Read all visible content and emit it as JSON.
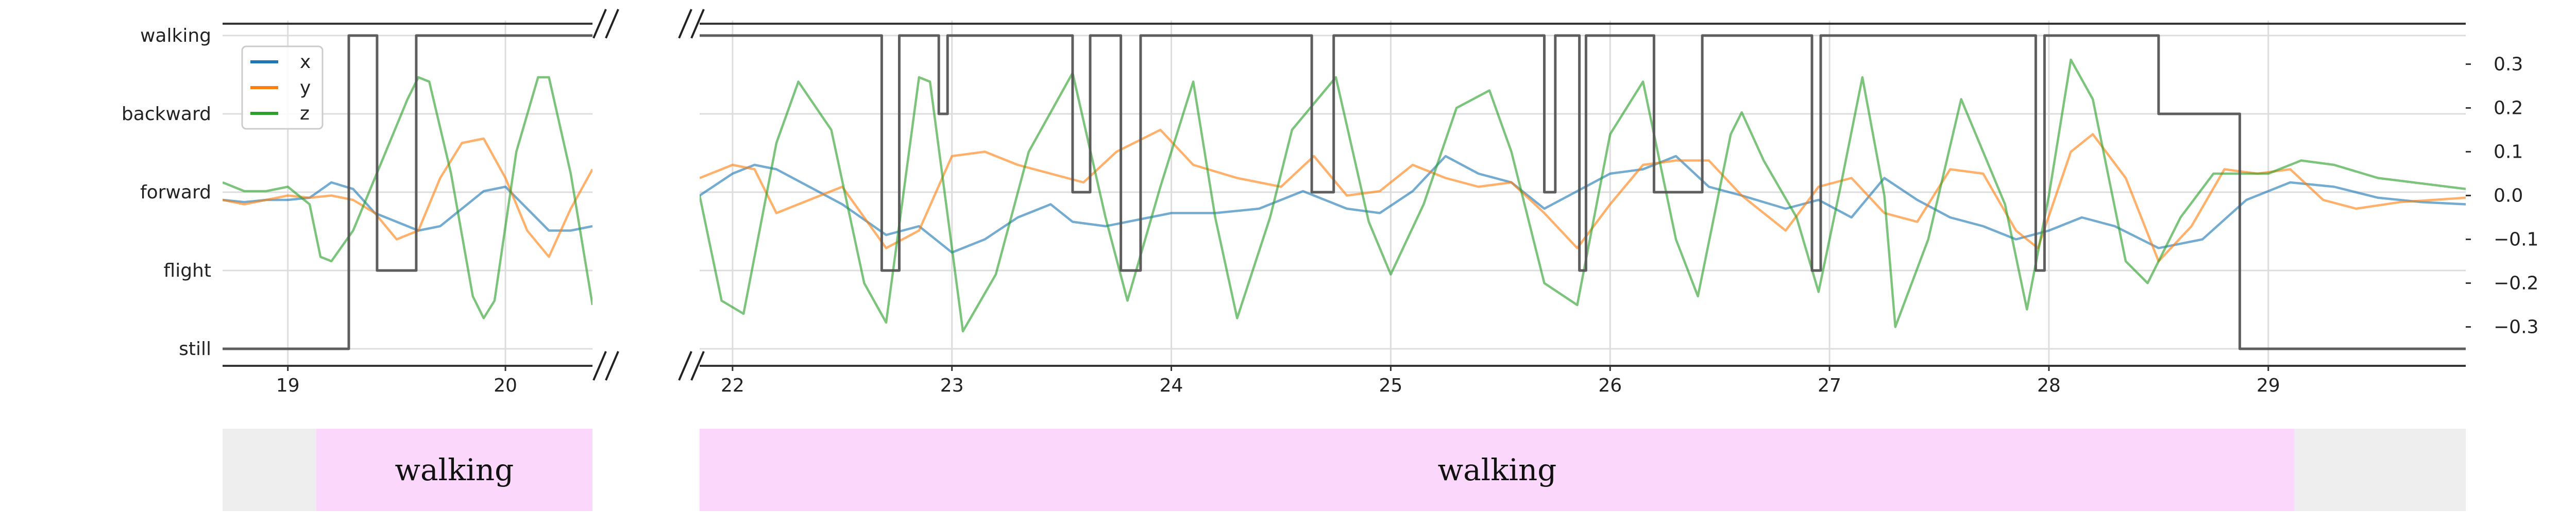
{
  "chart_data": {
    "type": "line",
    "title": "",
    "xlabel": "",
    "ylabel": "",
    "axes": [
      {
        "name": "left-panel",
        "xlim": [
          18.7,
          20.4
        ],
        "x_ticks": [
          "19",
          "20"
        ]
      },
      {
        "name": "right-panel",
        "xlim": [
          21.85,
          29.9
        ],
        "x_ticks": [
          "22",
          "23",
          "24",
          "25",
          "26",
          "27",
          "28",
          "29"
        ]
      }
    ],
    "y_left": {
      "categories": [
        "walking",
        "backward",
        "forward",
        "flight",
        "still"
      ]
    },
    "y_right": {
      "ylim": [
        -0.33,
        0.33
      ],
      "ticks": [
        "0.3",
        "0.2",
        "0.1",
        "0.0",
        "−0.1",
        "−0.2",
        "−0.3"
      ],
      "tick_values": [
        0.3,
        0.2,
        0.1,
        0.0,
        -0.1,
        -0.2,
        -0.3
      ]
    },
    "legend": {
      "placement": "upper-left",
      "entries": [
        "x",
        "y",
        "z"
      ]
    },
    "colors": {
      "x": "#1f77b4",
      "y": "#ff7f0e",
      "z": "#2ca02c",
      "state": "#555555",
      "segment_label": "#fbd8fb",
      "segment_none": "#eeeeee"
    },
    "state_series": {
      "name": "state",
      "points": [
        [
          18.7,
          "still"
        ],
        [
          19.28,
          "still"
        ],
        [
          19.28,
          "walking"
        ],
        [
          19.41,
          "walking"
        ],
        [
          19.41,
          "flight"
        ],
        [
          19.59,
          "flight"
        ],
        [
          19.59,
          "walking"
        ],
        [
          20.4,
          "walking"
        ],
        [
          21.85,
          "walking"
        ],
        [
          22.68,
          "walking"
        ],
        [
          22.68,
          "flight"
        ],
        [
          22.76,
          "flight"
        ],
        [
          22.76,
          "walking"
        ],
        [
          22.94,
          "walking"
        ],
        [
          22.94,
          "backward"
        ],
        [
          22.98,
          "backward"
        ],
        [
          22.98,
          "walking"
        ],
        [
          23.55,
          "walking"
        ],
        [
          23.55,
          "forward"
        ],
        [
          23.63,
          "forward"
        ],
        [
          23.63,
          "walking"
        ],
        [
          23.77,
          "walking"
        ],
        [
          23.77,
          "flight"
        ],
        [
          23.86,
          "flight"
        ],
        [
          23.86,
          "walking"
        ],
        [
          24.64,
          "walking"
        ],
        [
          24.64,
          "forward"
        ],
        [
          24.74,
          "forward"
        ],
        [
          24.74,
          "walking"
        ],
        [
          25.7,
          "walking"
        ],
        [
          25.7,
          "forward"
        ],
        [
          25.75,
          "forward"
        ],
        [
          25.75,
          "walking"
        ],
        [
          25.86,
          "walking"
        ],
        [
          25.86,
          "flight"
        ],
        [
          25.89,
          "flight"
        ],
        [
          25.89,
          "walking"
        ],
        [
          26.2,
          "walking"
        ],
        [
          26.2,
          "forward"
        ],
        [
          26.42,
          "forward"
        ],
        [
          26.42,
          "walking"
        ],
        [
          26.92,
          "walking"
        ],
        [
          26.92,
          "flight"
        ],
        [
          26.96,
          "flight"
        ],
        [
          26.96,
          "walking"
        ],
        [
          27.94,
          "walking"
        ],
        [
          27.94,
          "flight"
        ],
        [
          27.98,
          "flight"
        ],
        [
          27.98,
          "walking"
        ],
        [
          28.5,
          "walking"
        ],
        [
          28.5,
          "backward"
        ],
        [
          28.87,
          "backward"
        ],
        [
          28.87,
          "still"
        ],
        [
          29.9,
          "still"
        ]
      ]
    },
    "series": [
      {
        "name": "x",
        "points": [
          [
            18.7,
            -0.01
          ],
          [
            18.8,
            -0.015
          ],
          [
            18.9,
            -0.01
          ],
          [
            19.0,
            -0.01
          ],
          [
            19.1,
            -0.005
          ],
          [
            19.2,
            0.03
          ],
          [
            19.3,
            0.015
          ],
          [
            19.4,
            -0.04
          ],
          [
            19.5,
            -0.06
          ],
          [
            19.6,
            -0.08
          ],
          [
            19.7,
            -0.07
          ],
          [
            19.8,
            -0.03
          ],
          [
            19.9,
            0.01
          ],
          [
            20.0,
            0.02
          ],
          [
            20.1,
            -0.03
          ],
          [
            20.2,
            -0.08
          ],
          [
            20.3,
            -0.08
          ],
          [
            20.4,
            -0.07
          ],
          [
            21.85,
            0.0
          ],
          [
            22.0,
            0.05
          ],
          [
            22.1,
            0.07
          ],
          [
            22.2,
            0.06
          ],
          [
            22.35,
            0.02
          ],
          [
            22.5,
            -0.02
          ],
          [
            22.7,
            -0.09
          ],
          [
            22.85,
            -0.07
          ],
          [
            23.0,
            -0.13
          ],
          [
            23.15,
            -0.1
          ],
          [
            23.3,
            -0.05
          ],
          [
            23.45,
            -0.02
          ],
          [
            23.55,
            -0.06
          ],
          [
            23.7,
            -0.07
          ],
          [
            23.9,
            -0.05
          ],
          [
            24.0,
            -0.04
          ],
          [
            24.2,
            -0.04
          ],
          [
            24.4,
            -0.03
          ],
          [
            24.6,
            0.01
          ],
          [
            24.8,
            -0.03
          ],
          [
            24.95,
            -0.04
          ],
          [
            25.1,
            0.01
          ],
          [
            25.25,
            0.09
          ],
          [
            25.4,
            0.05
          ],
          [
            25.55,
            0.03
          ],
          [
            25.7,
            -0.03
          ],
          [
            25.85,
            0.01
          ],
          [
            26.0,
            0.05
          ],
          [
            26.15,
            0.06
          ],
          [
            26.3,
            0.09
          ],
          [
            26.45,
            0.02
          ],
          [
            26.6,
            0.0
          ],
          [
            26.8,
            -0.03
          ],
          [
            26.95,
            -0.01
          ],
          [
            27.1,
            -0.05
          ],
          [
            27.25,
            0.04
          ],
          [
            27.4,
            -0.01
          ],
          [
            27.55,
            -0.05
          ],
          [
            27.7,
            -0.07
          ],
          [
            27.85,
            -0.1
          ],
          [
            28.0,
            -0.08
          ],
          [
            28.15,
            -0.05
          ],
          [
            28.3,
            -0.07
          ],
          [
            28.5,
            -0.12
          ],
          [
            28.7,
            -0.1
          ],
          [
            28.9,
            -0.01
          ],
          [
            29.1,
            0.03
          ],
          [
            29.3,
            0.02
          ],
          [
            29.5,
            -0.005
          ],
          [
            29.7,
            -0.015
          ],
          [
            29.9,
            -0.02
          ]
        ]
      },
      {
        "name": "y",
        "points": [
          [
            18.7,
            -0.01
          ],
          [
            18.8,
            -0.02
          ],
          [
            18.9,
            -0.01
          ],
          [
            19.0,
            0.0
          ],
          [
            19.1,
            -0.005
          ],
          [
            19.2,
            0.0
          ],
          [
            19.3,
            -0.01
          ],
          [
            19.4,
            -0.04
          ],
          [
            19.5,
            -0.1
          ],
          [
            19.6,
            -0.08
          ],
          [
            19.7,
            0.04
          ],
          [
            19.8,
            0.12
          ],
          [
            19.9,
            0.13
          ],
          [
            20.0,
            0.04
          ],
          [
            20.1,
            -0.08
          ],
          [
            20.2,
            -0.14
          ],
          [
            20.3,
            -0.03
          ],
          [
            20.4,
            0.06
          ],
          [
            21.85,
            0.04
          ],
          [
            22.0,
            0.07
          ],
          [
            22.1,
            0.06
          ],
          [
            22.2,
            -0.04
          ],
          [
            22.35,
            -0.01
          ],
          [
            22.5,
            0.02
          ],
          [
            22.7,
            -0.12
          ],
          [
            22.85,
            -0.08
          ],
          [
            23.0,
            0.09
          ],
          [
            23.15,
            0.1
          ],
          [
            23.3,
            0.07
          ],
          [
            23.45,
            0.05
          ],
          [
            23.6,
            0.03
          ],
          [
            23.75,
            0.1
          ],
          [
            23.95,
            0.15
          ],
          [
            24.1,
            0.07
          ],
          [
            24.3,
            0.04
          ],
          [
            24.5,
            0.02
          ],
          [
            24.65,
            0.09
          ],
          [
            24.8,
            0.0
          ],
          [
            24.95,
            0.01
          ],
          [
            25.1,
            0.07
          ],
          [
            25.25,
            0.04
          ],
          [
            25.4,
            0.02
          ],
          [
            25.55,
            0.03
          ],
          [
            25.7,
            -0.04
          ],
          [
            25.85,
            -0.12
          ],
          [
            26.0,
            -0.02
          ],
          [
            26.15,
            0.07
          ],
          [
            26.3,
            0.08
          ],
          [
            26.45,
            0.08
          ],
          [
            26.6,
            0.0
          ],
          [
            26.8,
            -0.08
          ],
          [
            26.95,
            0.02
          ],
          [
            27.1,
            0.04
          ],
          [
            27.25,
            -0.04
          ],
          [
            27.4,
            -0.06
          ],
          [
            27.55,
            0.06
          ],
          [
            27.7,
            0.05
          ],
          [
            27.85,
            -0.08
          ],
          [
            27.95,
            -0.12
          ],
          [
            28.1,
            0.1
          ],
          [
            28.2,
            0.14
          ],
          [
            28.35,
            0.04
          ],
          [
            28.5,
            -0.15
          ],
          [
            28.65,
            -0.07
          ],
          [
            28.8,
            0.06
          ],
          [
            28.95,
            0.05
          ],
          [
            29.1,
            0.06
          ],
          [
            29.25,
            -0.01
          ],
          [
            29.4,
            -0.03
          ],
          [
            29.6,
            -0.015
          ],
          [
            29.9,
            -0.005
          ]
        ]
      },
      {
        "name": "z",
        "points": [
          [
            18.7,
            0.03
          ],
          [
            18.8,
            0.01
          ],
          [
            18.9,
            0.01
          ],
          [
            19.0,
            0.02
          ],
          [
            19.1,
            -0.02
          ],
          [
            19.15,
            -0.14
          ],
          [
            19.2,
            -0.15
          ],
          [
            19.3,
            -0.08
          ],
          [
            19.45,
            0.1
          ],
          [
            19.55,
            0.22
          ],
          [
            19.6,
            0.27
          ],
          [
            19.65,
            0.26
          ],
          [
            19.75,
            0.05
          ],
          [
            19.85,
            -0.23
          ],
          [
            19.9,
            -0.28
          ],
          [
            19.95,
            -0.24
          ],
          [
            20.05,
            0.1
          ],
          [
            20.15,
            0.27
          ],
          [
            20.2,
            0.27
          ],
          [
            20.3,
            0.05
          ],
          [
            20.4,
            -0.25
          ],
          [
            21.85,
            0.0
          ],
          [
            21.95,
            -0.24
          ],
          [
            22.05,
            -0.27
          ],
          [
            22.2,
            0.12
          ],
          [
            22.3,
            0.26
          ],
          [
            22.45,
            0.15
          ],
          [
            22.6,
            -0.2
          ],
          [
            22.7,
            -0.29
          ],
          [
            22.85,
            0.27
          ],
          [
            22.9,
            0.26
          ],
          [
            23.05,
            -0.31
          ],
          [
            23.2,
            -0.18
          ],
          [
            23.35,
            0.1
          ],
          [
            23.55,
            0.28
          ],
          [
            23.7,
            -0.05
          ],
          [
            23.8,
            -0.24
          ],
          [
            23.95,
            0.02
          ],
          [
            24.1,
            0.26
          ],
          [
            24.2,
            -0.05
          ],
          [
            24.3,
            -0.28
          ],
          [
            24.45,
            -0.05
          ],
          [
            24.55,
            0.15
          ],
          [
            24.75,
            0.27
          ],
          [
            24.9,
            -0.06
          ],
          [
            25.0,
            -0.18
          ],
          [
            25.15,
            -0.02
          ],
          [
            25.3,
            0.2
          ],
          [
            25.45,
            0.24
          ],
          [
            25.55,
            0.1
          ],
          [
            25.7,
            -0.2
          ],
          [
            25.85,
            -0.25
          ],
          [
            26.0,
            0.14
          ],
          [
            26.15,
            0.26
          ],
          [
            26.3,
            -0.1
          ],
          [
            26.4,
            -0.23
          ],
          [
            26.55,
            0.14
          ],
          [
            26.6,
            0.19
          ],
          [
            26.7,
            0.08
          ],
          [
            26.85,
            -0.05
          ],
          [
            26.95,
            -0.22
          ],
          [
            27.05,
            0.02
          ],
          [
            27.15,
            0.27
          ],
          [
            27.25,
            0.0
          ],
          [
            27.3,
            -0.3
          ],
          [
            27.45,
            -0.1
          ],
          [
            27.6,
            0.22
          ],
          [
            27.8,
            -0.02
          ],
          [
            27.9,
            -0.26
          ],
          [
            28.0,
            0.0
          ],
          [
            28.1,
            0.31
          ],
          [
            28.2,
            0.22
          ],
          [
            28.35,
            -0.15
          ],
          [
            28.45,
            -0.2
          ],
          [
            28.6,
            -0.05
          ],
          [
            28.75,
            0.05
          ],
          [
            28.85,
            0.05
          ],
          [
            29.0,
            0.05
          ],
          [
            29.15,
            0.08
          ],
          [
            29.3,
            0.07
          ],
          [
            29.5,
            0.04
          ],
          [
            29.9,
            0.015
          ]
        ]
      }
    ],
    "segments": [
      {
        "label": "walking",
        "panel": 0,
        "start": 19.13,
        "end": 20.4,
        "color": "#fbd8fb"
      },
      {
        "label": "",
        "panel": 0,
        "start": 18.7,
        "end": 19.13,
        "color": "#eeeeee"
      },
      {
        "label": "walking",
        "panel": 1,
        "start": 21.85,
        "end": 29.12,
        "color": "#fbd8fb"
      },
      {
        "label": "",
        "panel": 1,
        "start": 29.12,
        "end": 29.9,
        "color": "#eeeeee"
      }
    ]
  }
}
